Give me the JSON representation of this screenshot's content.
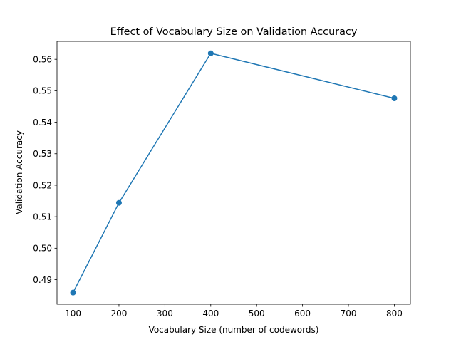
{
  "chart_data": {
    "type": "line",
    "title": "Effect of Vocabulary Size on Validation Accuracy",
    "xlabel": "Vocabulary Size (number of codewords)",
    "ylabel": "Validation Accuracy",
    "x": [
      100,
      200,
      400,
      800
    ],
    "series": [
      {
        "values": [
          0.4859,
          0.5144,
          0.5619,
          0.5476
        ],
        "color": "#1f77b4",
        "marker": "circle"
      }
    ],
    "xlim": [
      65,
      835
    ],
    "ylim": [
      0.4822,
      0.5657
    ],
    "xticks": [
      "100",
      "200",
      "300",
      "400",
      "500",
      "600",
      "700",
      "800"
    ],
    "yticks": [
      "0.49",
      "0.50",
      "0.51",
      "0.52",
      "0.53",
      "0.54",
      "0.55",
      "0.56"
    ],
    "grid": false,
    "legend": "none"
  }
}
